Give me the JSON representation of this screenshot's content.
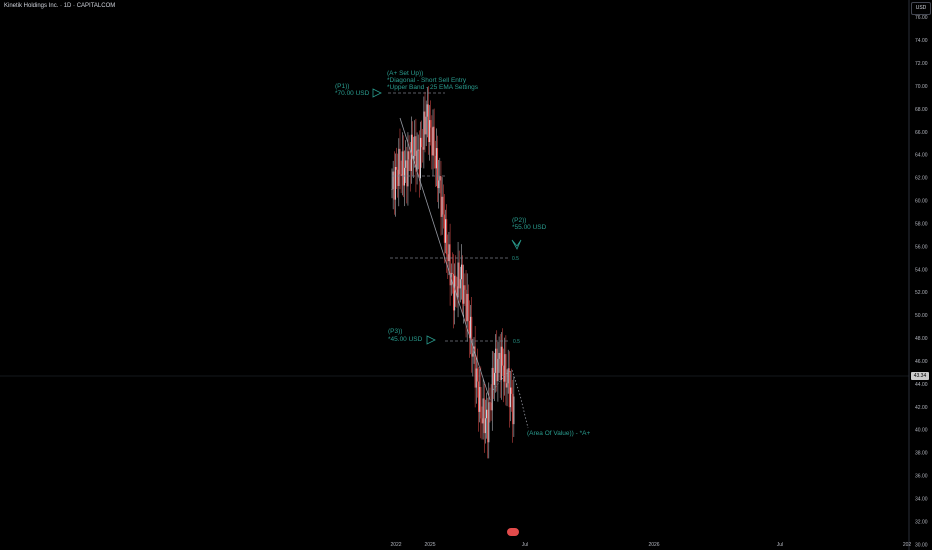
{
  "header": {
    "title": "Kinetik Holdings Inc. · 1D · CAPITALCOM",
    "currency": "USD",
    "last_price": "43.34"
  },
  "chart_data": {
    "type": "line",
    "title": "Kinetik Holdings Inc. · 1D · CAPITALCOM",
    "ylabel": "",
    "xlabel": "",
    "ylim": [
      29.5,
      77.5
    ],
    "y_ticks": [
      30,
      32,
      34,
      36,
      38,
      40,
      42,
      44,
      46,
      48,
      50,
      52,
      54,
      56,
      58,
      60,
      62,
      64,
      66,
      68,
      70,
      72,
      74,
      76
    ],
    "y_tick_labels": [
      "30.00",
      "32.00",
      "34.00",
      "36.00",
      "38.00",
      "40.00",
      "42.00",
      "44.00",
      "46.00",
      "48.00",
      "50.00",
      "52.00",
      "54.00",
      "56.00",
      "58.00",
      "60.00",
      "62.00",
      "64.00",
      "66.00",
      "68.00",
      "70.00",
      "72.00",
      "74.00",
      "76.00"
    ],
    "x_tick_labels": [
      "2022",
      "2025",
      "Jul",
      "2026",
      "Jul",
      "202"
    ],
    "x": [
      "2024-10-01",
      "2024-10-15",
      "2024-11-01",
      "2024-11-15",
      "2024-12-01",
      "2024-12-15",
      "2025-01-02",
      "2025-01-15",
      "2025-02-01",
      "2025-02-15",
      "2025-03-01",
      "2025-03-15",
      "2025-04-01",
      "2025-04-15",
      "2025-05-01",
      "2025-05-15",
      "2025-06-01",
      "2025-06-15",
      "2025-07-01"
    ],
    "series": [
      {
        "values": [
          61.0,
          63.0,
          62.5,
          64.5,
          63.5,
          67.5,
          65.0,
          61.0,
          56.0,
          52.0,
          53.5,
          50.5,
          46.0,
          41.5,
          40.5,
          45.5,
          46.0,
          44.0,
          41.0
        ]
      }
    ],
    "annotations": {
      "p1": "(P1))",
      "p1_price": "*70.00 USD",
      "setup_title": "(A+ Set Up))",
      "setup_line1": "*Diagonal - Short Sell Entry",
      "setup_line2": "*Upper Band - 25 EMA Settings",
      "p2": "(P2))",
      "p2_price": "*55.00 USD",
      "p3": "(P3))",
      "p3_price": "*45.00 USD",
      "aov": "(Area Of Value)) - *A+",
      "fib_mid": "0.5",
      "fib_low": "0.5"
    },
    "grid": false,
    "colors": {
      "up": "#d1d4dc",
      "down": "#ef5350",
      "annotation": "#2a9d8f"
    }
  }
}
